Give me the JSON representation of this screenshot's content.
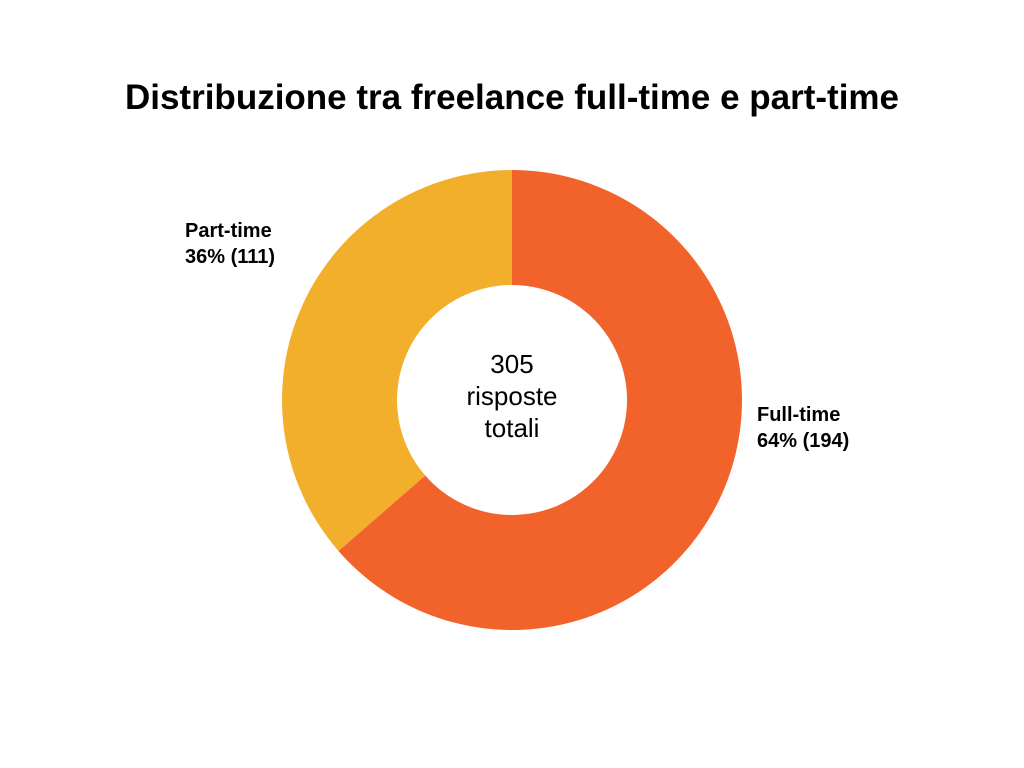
{
  "chart_data": {
    "type": "pie",
    "donut": true,
    "title": "Distribuzione tra freelance full-time e part-time",
    "slices": [
      {
        "name": "Full-time",
        "label": "64% (194)",
        "value": 194,
        "percent": 64,
        "color": "#F2632C"
      },
      {
        "name": "Part-time",
        "label": "36% (111)",
        "value": 111,
        "percent": 36,
        "color": "#F2AF2C"
      }
    ],
    "center": {
      "value": "305",
      "line1": "risposte",
      "line2": "totali"
    },
    "start": "top",
    "direction": "clockwise"
  }
}
